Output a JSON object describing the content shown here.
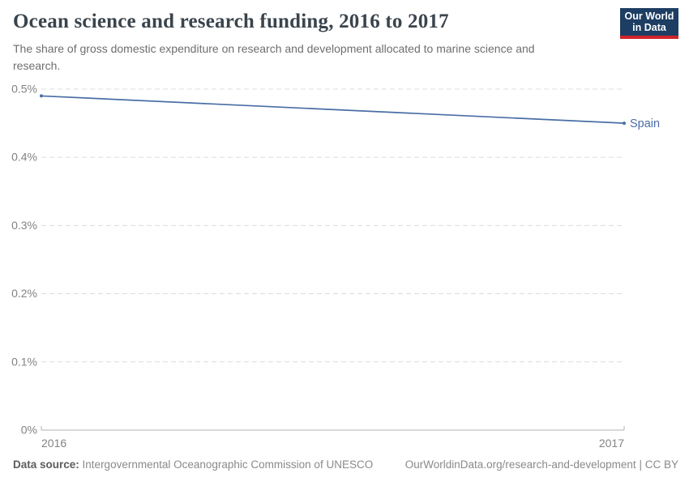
{
  "header": {
    "title": "Ocean science and research funding, 2016 to 2017",
    "subtitle": "The share of gross domestic expenditure on research and development allocated to marine science and research.",
    "logo": {
      "line1": "Our World",
      "line2": "in Data"
    }
  },
  "chart_data": {
    "type": "line",
    "title": "Ocean science and research funding, 2016 to 2017",
    "xlabel": "",
    "ylabel": "",
    "x": [
      2016,
      2017
    ],
    "x_tick_labels": [
      "2016",
      "2017"
    ],
    "series": [
      {
        "name": "Spain",
        "values": [
          0.49,
          0.45
        ],
        "color": "#4a6da5"
      }
    ],
    "y_ticks": [
      {
        "label": "0%",
        "value": 0
      },
      {
        "label": "0.1%",
        "value": 0.1
      },
      {
        "label": "0.2%",
        "value": 0.2
      },
      {
        "label": "0.3%",
        "value": 0.3
      },
      {
        "label": "0.4%",
        "value": 0.4
      },
      {
        "label": "0.5%",
        "value": 0.5
      }
    ],
    "ylim": [
      0,
      0.5
    ],
    "grid": "horizontal-dashed",
    "legend_position": "line-end-label"
  },
  "footer": {
    "source_label": "Data source:",
    "source_value": "Intergovernmental Oceanographic Commission of UNESCO",
    "link_text": "OurWorldinData.org/research-and-development",
    "separator": "|",
    "license": "CC BY"
  },
  "colors": {
    "accent_navy": "#1d3d63",
    "accent_red": "#d1232a",
    "series_blue": "#4a6da5",
    "gridline": "#dcdcdc",
    "axis": "#b3b3b3",
    "tick_label": "#838383",
    "title_text": "#3a444d",
    "subtitle_text": "#6e6e6e",
    "footer_text": "#8a8a8a"
  }
}
